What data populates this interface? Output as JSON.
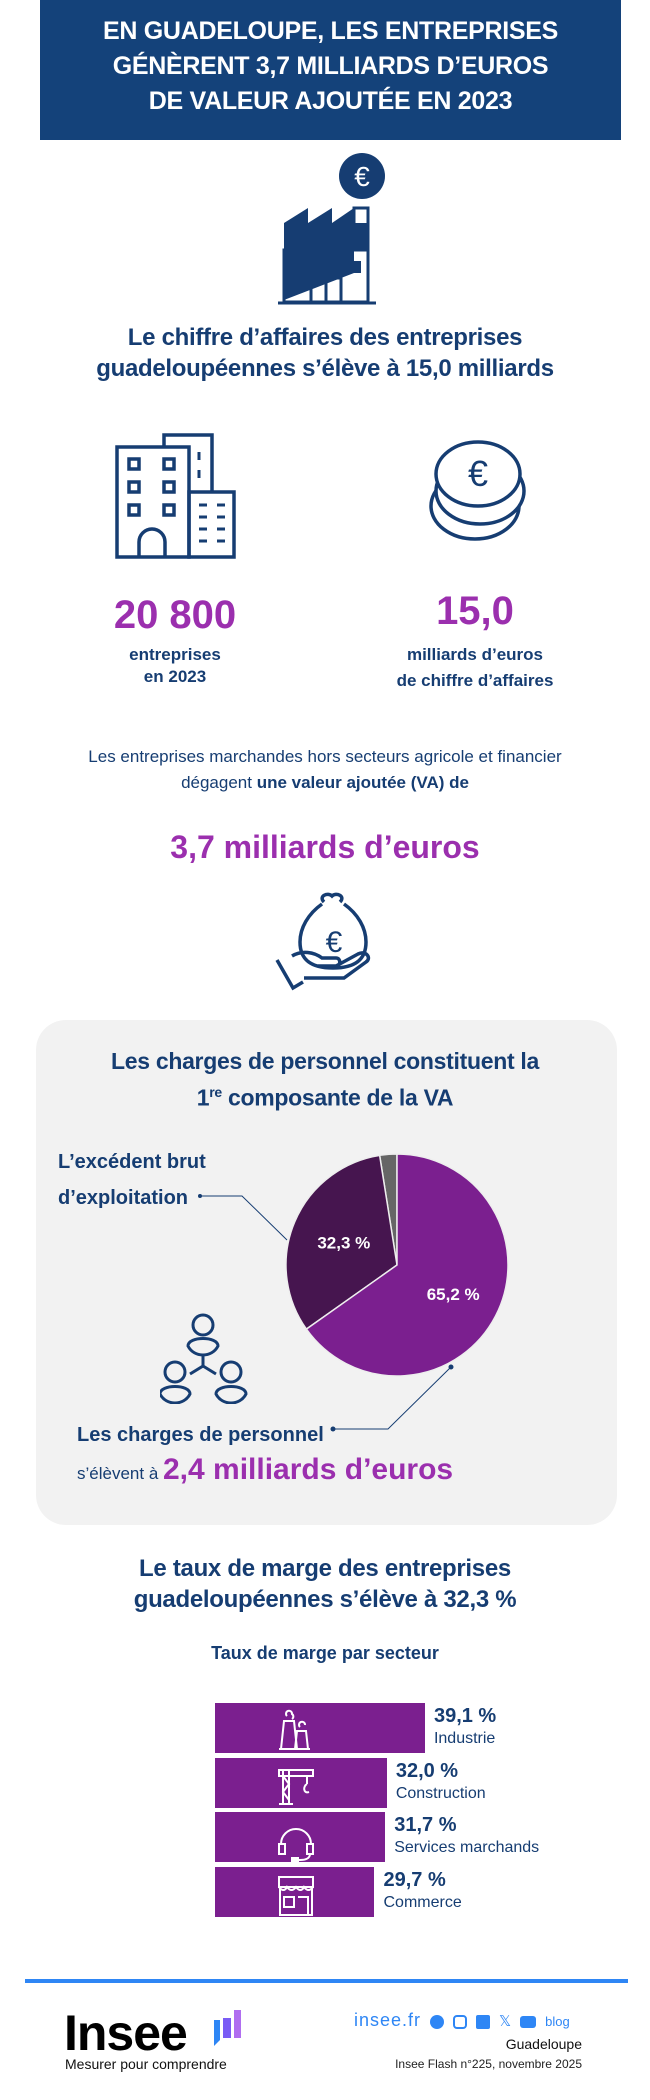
{
  "title": [
    "EN GUADELOUPE, LES ENTREPRISES",
    "GÉNÈRENT 3,7 MILLIARDS D’EUROS",
    "DE VALEUR AJOUTÉE EN 2023"
  ],
  "ca_heading": [
    "Le chiffre d’affaires des entreprises",
    "guadeloupéennes s’élève à 15,0 milliards"
  ],
  "stats": [
    {
      "value": "20 800",
      "lines": [
        "entreprises",
        "en 2023"
      ],
      "icon": "buildings-icon"
    },
    {
      "value": "15,0",
      "lines": [
        "milliards d’euros",
        "de chiffre d’affaires"
      ],
      "icon": "coins-icon"
    }
  ],
  "va_text": {
    "line1": "Les entreprises marchandes hors secteurs agricole et financier",
    "line2_plain": "dégagent ",
    "line2_bold": "une valeur ajoutée (VA) de",
    "value": "3,7 milliards d’euros"
  },
  "va_box": {
    "heading1": "Les charges de personnel constituent la",
    "heading2_num": "1",
    "heading2_sup": "re",
    "heading2_rest": " composante de la VA",
    "ebe_label": [
      "L’excédent brut",
      "d’exploitation"
    ],
    "personnel_label": "Les charges de personnel",
    "personnel_prefix": "s’élèvent à ",
    "personnel_value": "2,4 milliards d’euros"
  },
  "chart_data": [
    {
      "type": "pie",
      "slices": [
        {
          "label": "Les charges de personnel",
          "value": 65.2,
          "display": "65,2 %",
          "color": "#7b1f8f"
        },
        {
          "label": "L’excédent brut d’exploitation",
          "value": 32.3,
          "display": "32,3 %",
          "color": "#46154f"
        },
        {
          "label": "",
          "value": 2.5,
          "display": "",
          "color": "#666666"
        }
      ]
    },
    {
      "type": "bar",
      "orientation": "horizontal",
      "title": "Taux de marge par secteur",
      "categories": [
        "Industrie",
        "Construction",
        "Services marchands",
        "Commerce"
      ],
      "values": [
        39.1,
        32.0,
        31.7,
        29.7
      ],
      "labels": [
        "39,1 %",
        "32,0 %",
        "31,7 %",
        "29,7 %"
      ],
      "icons": [
        "factory-icon",
        "crane-icon",
        "headset-icon",
        "shop-icon"
      ],
      "color": "#7b1f8f"
    }
  ],
  "marge_heading": [
    "Le taux de marge des entreprises",
    "guadeloupéennes s’élève à 32,3 %"
  ],
  "footer": {
    "logo": "Insee",
    "tagline": "Mesurer pour comprendre",
    "site": "insee.fr",
    "blog": "blog",
    "region": "Guadeloupe",
    "publication": "Insee Flash n°225, novembre 2025",
    "accent": "#2e86f5"
  }
}
